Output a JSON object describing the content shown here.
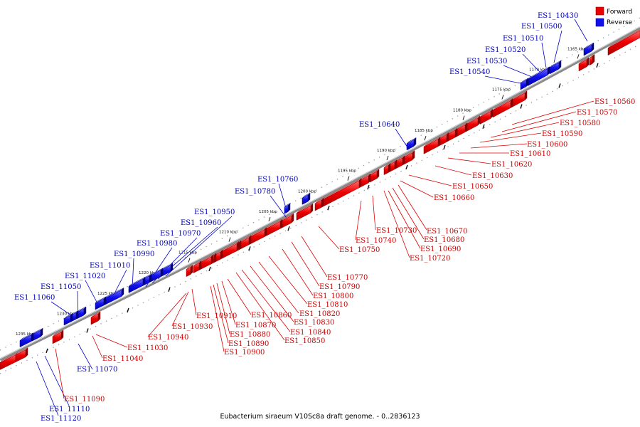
{
  "legend": [
    {
      "label": "Forward",
      "color": "#ee0000"
    },
    {
      "label": "Reverse",
      "color": "#1111ee"
    }
  ],
  "caption": "Eubacterium siraeum V10Sc8a draft genome. - 0..2836123",
  "ticks": [
    "1165 kbp",
    "1170 kbp",
    "1175 kbp",
    "1180 kbp",
    "1185 kbp",
    "1190 kbp",
    "1195 kbp",
    "1200 kbp",
    "1205 kbp",
    "1210 kbp",
    "1215 kbp",
    "1220 kbp",
    "1225 kbp",
    "1230 kbp",
    "1235 kbp"
  ],
  "reverse_labels": [
    "ES1_10430",
    "ES1_10500",
    "ES1_10510",
    "ES1_10520",
    "ES1_10530",
    "ES1_10540",
    "ES1_10640",
    "ES1_10760",
    "ES1_10780",
    "ES1_10950",
    "ES1_10960",
    "ES1_10970",
    "ES1_10980",
    "ES1_10990",
    "ES1_11010",
    "ES1_11020",
    "ES1_11050",
    "ES1_11060",
    "ES1_11070",
    "ES1_11110",
    "ES1_11120"
  ],
  "forward_labels": [
    "ES1_10560",
    "ES1_10570",
    "ES1_10580",
    "ES1_10590",
    "ES1_10600",
    "ES1_10610",
    "ES1_10620",
    "ES1_10630",
    "ES1_10650",
    "ES1_10660",
    "ES1_10670",
    "ES1_10680",
    "ES1_10690",
    "ES1_10720",
    "ES1_10730",
    "ES1_10740",
    "ES1_10750",
    "ES1_10770",
    "ES1_10790",
    "ES1_10800",
    "ES1_10810",
    "ES1_10820",
    "ES1_10830",
    "ES1_10840",
    "ES1_10850",
    "ES1_10860",
    "ES1_10870",
    "ES1_10880",
    "ES1_10890",
    "ES1_10900",
    "ES1_10910",
    "ES1_10930",
    "ES1_10940",
    "ES1_11030",
    "ES1_11040",
    "ES1_11090"
  ]
}
